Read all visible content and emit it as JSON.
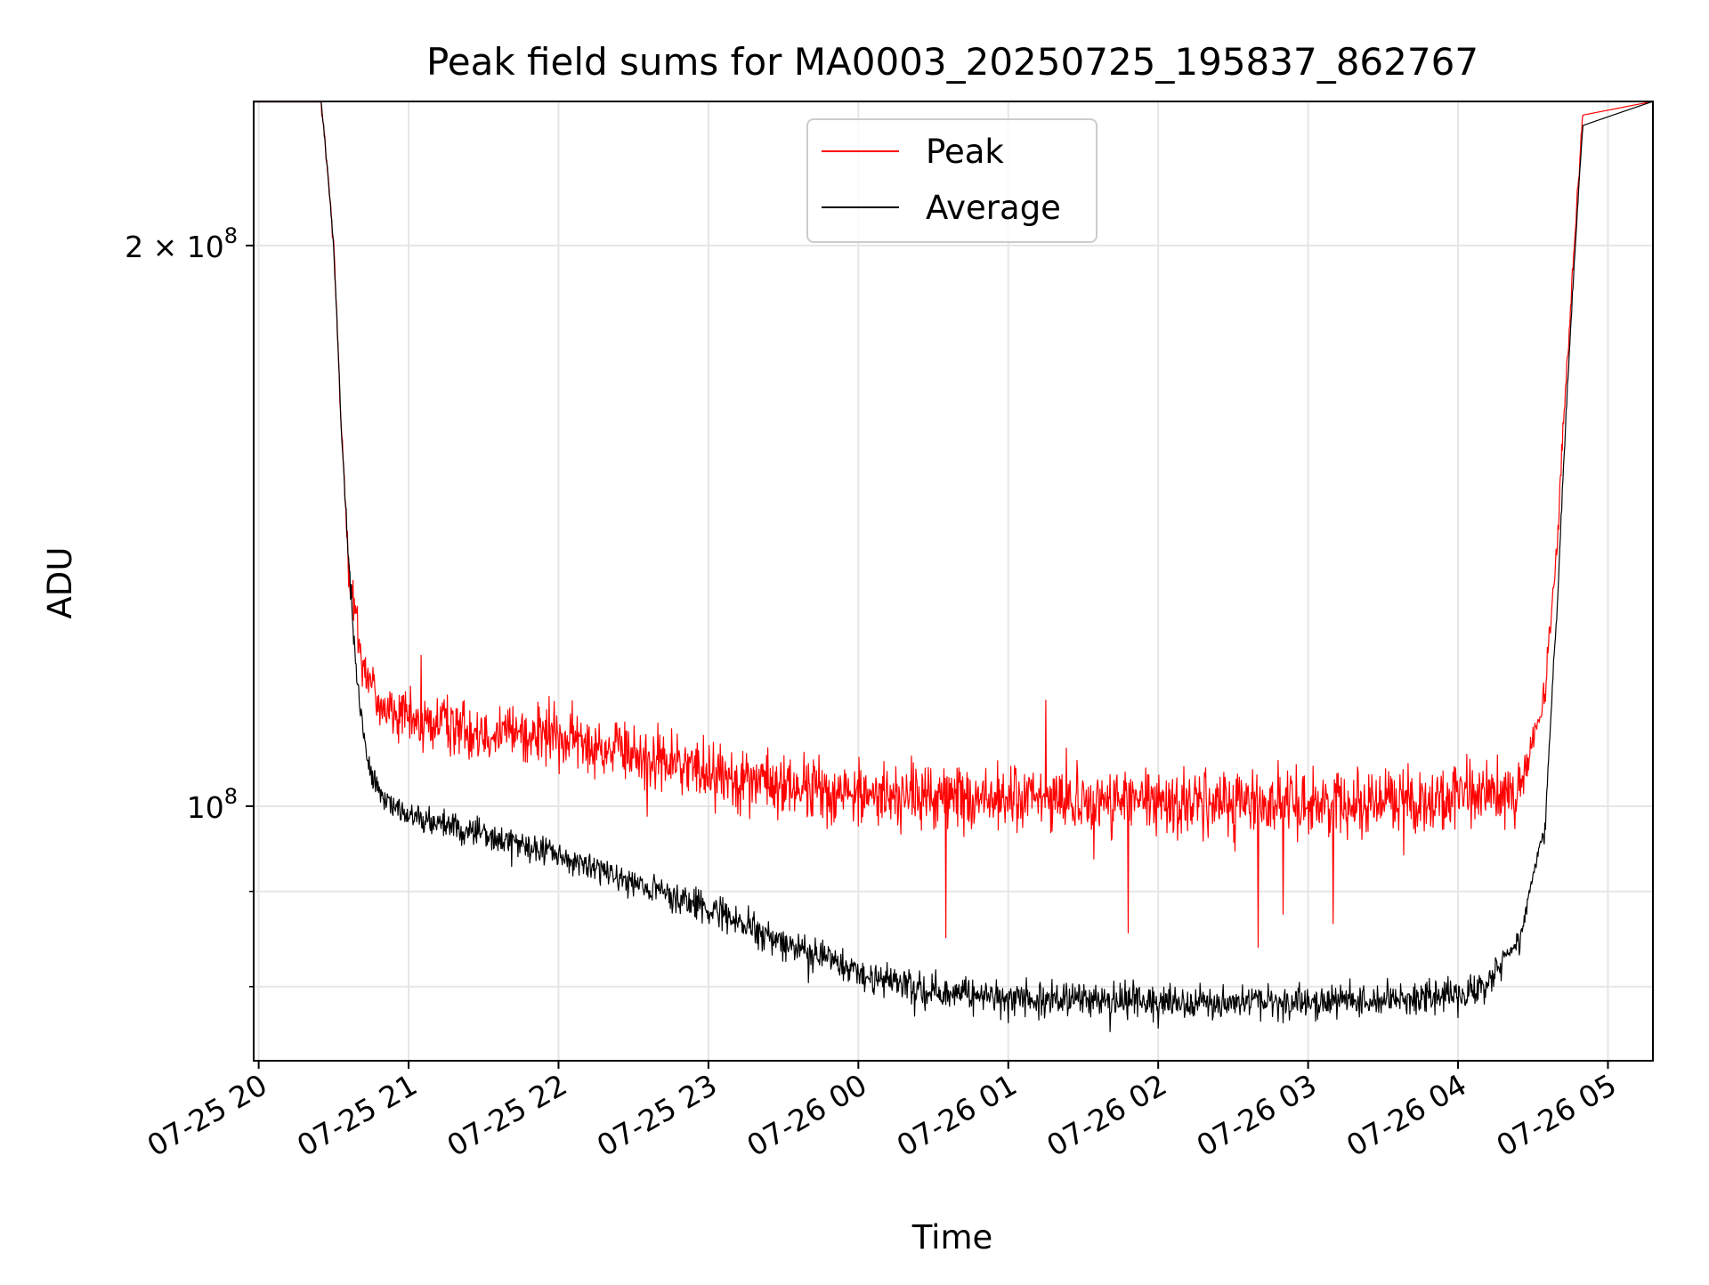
{
  "chart_data": {
    "type": "line",
    "title": "Peak field sums for MA0003_20250725_195837_862767",
    "xlabel": "Time",
    "ylabel": "ADU",
    "x_axis": "datetime",
    "x_start": "2025-07-25 19:58",
    "x_end": "2025-07-26 05:18",
    "xlim": [
      "2025-07-25 19:58",
      "2025-07-26 05:18"
    ],
    "x_tick_values": [
      "2025-07-25 20:00",
      "2025-07-25 21:00",
      "2025-07-25 22:00",
      "2025-07-25 23:00",
      "2025-07-26 00:00",
      "2025-07-26 01:00",
      "2025-07-26 02:00",
      "2025-07-26 03:00",
      "2025-07-26 04:00",
      "2025-07-26 05:00"
    ],
    "x_tick_labels": [
      "07-25 20",
      "07-25 21",
      "07-25 22",
      "07-25 23",
      "07-26 00",
      "07-26 01",
      "07-26 02",
      "07-26 03",
      "07-26 04",
      "07-26 05"
    ],
    "y_scale": "log",
    "ylim": [
      73000000,
      239000000
    ],
    "y_major_ticks": [
      {
        "value": 100000000,
        "label_base": "10",
        "label_exp": "8",
        "label_mult": ""
      },
      {
        "value": 200000000,
        "label_base": "10",
        "label_exp": "8",
        "label_mult": "2 × "
      }
    ],
    "y_minor_ticks": [
      80000000,
      90000000
    ],
    "grid": true,
    "legend": {
      "position": "upper-center",
      "entries": [
        "Peak",
        "Average"
      ]
    },
    "series": [
      {
        "name": "Peak",
        "color": "#ff0000",
        "x": [
          "2025-07-25 19:58",
          "2025-07-25 20:25",
          "2025-07-25 20:30",
          "2025-07-25 20:33",
          "2025-07-25 20:36",
          "2025-07-25 20:40",
          "2025-07-25 20:45",
          "2025-07-25 20:50",
          "2025-07-25 21:00",
          "2025-07-25 21:30",
          "2025-07-25 22:00",
          "2025-07-25 22:30",
          "2025-07-25 23:00",
          "2025-07-25 23:30",
          "2025-07-26 00:00",
          "2025-07-26 01:00",
          "2025-07-26 02:00",
          "2025-07-26 03:00",
          "2025-07-26 04:00",
          "2025-07-26 04:25",
          "2025-07-26 04:35",
          "2025-07-26 04:40",
          "2025-07-26 04:45",
          "2025-07-26 04:50",
          "2025-07-26 05:18"
        ],
        "y": [
          239000000,
          239000000,
          200000000,
          160000000,
          135000000,
          122000000,
          116000000,
          113000000,
          111000000,
          110000000,
          109000000,
          106500000,
          104500000,
          102500000,
          101500000,
          101000000,
          100500000,
          100500000,
          101000000,
          102000000,
          115000000,
          140000000,
          185000000,
          235000000,
          239000000
        ],
        "noise_amplitude": 4500000,
        "notable_dips": [
          {
            "x": "2025-07-26 00:35",
            "y": 85000000
          },
          {
            "x": "2025-07-26 01:48",
            "y": 85500000
          },
          {
            "x": "2025-07-26 02:40",
            "y": 84000000
          },
          {
            "x": "2025-07-26 02:50",
            "y": 87500000
          },
          {
            "x": "2025-07-26 03:10",
            "y": 86500000
          }
        ],
        "notable_spikes": [
          {
            "x": "2025-07-25 21:05",
            "y": 120500000
          },
          {
            "x": "2025-07-26 01:15",
            "y": 114000000
          }
        ]
      },
      {
        "name": "Average",
        "color": "#000000",
        "x": [
          "2025-07-25 19:58",
          "2025-07-25 20:25",
          "2025-07-25 20:30",
          "2025-07-25 20:33",
          "2025-07-25 20:36",
          "2025-07-25 20:39",
          "2025-07-25 20:42",
          "2025-07-25 20:45",
          "2025-07-25 20:50",
          "2025-07-25 21:00",
          "2025-07-25 21:30",
          "2025-07-25 22:00",
          "2025-07-25 22:30",
          "2025-07-25 23:00",
          "2025-07-25 23:30",
          "2025-07-26 00:00",
          "2025-07-26 00:30",
          "2025-07-26 01:00",
          "2025-07-26 02:00",
          "2025-07-26 03:00",
          "2025-07-26 03:45",
          "2025-07-26 04:10",
          "2025-07-26 04:25",
          "2025-07-26 04:35",
          "2025-07-26 04:40",
          "2025-07-26 04:45",
          "2025-07-26 04:50",
          "2025-07-26 05:18"
        ],
        "y": [
          239000000,
          239000000,
          200000000,
          160000000,
          135000000,
          118000000,
          109000000,
          104000000,
          101000000,
          99000000,
          96500000,
          94000000,
          91000000,
          88000000,
          84500000,
          81500000,
          79500000,
          79000000,
          78500000,
          78500000,
          79000000,
          80000000,
          85000000,
          98000000,
          130000000,
          180000000,
          232000000,
          239000000
        ],
        "noise_amplitude": 1800000,
        "notable_dips": [
          {
            "x": "2025-07-26 01:00",
            "y": 76500000
          },
          {
            "x": "2025-07-26 02:00",
            "y": 76000000
          },
          {
            "x": "2025-07-26 02:50",
            "y": 76500000
          },
          {
            "x": "2025-07-26 04:00",
            "y": 77000000
          }
        ],
        "notable_spikes": [
          {
            "x": "2025-07-25 22:55",
            "y": 90500000
          }
        ]
      }
    ]
  }
}
